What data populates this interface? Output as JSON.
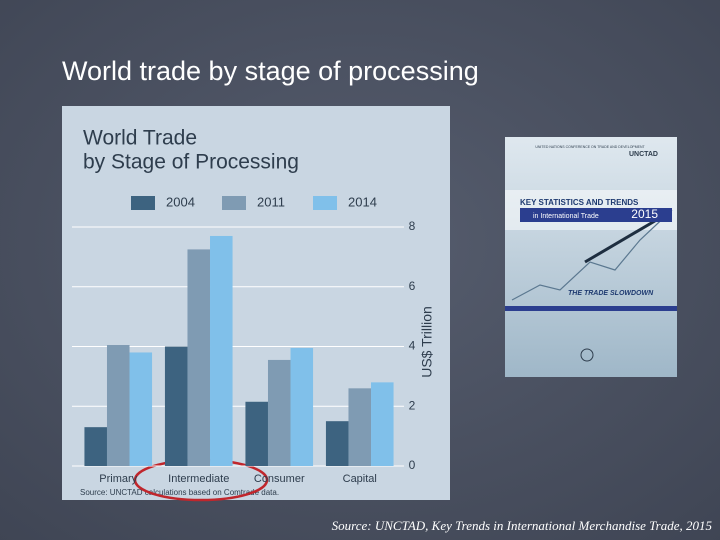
{
  "slide_title": "World trade by stage of processing",
  "footer": "Source: UNCTAD, Key Trends in International Merchandise Trade, 2015",
  "cover": {
    "org": "UNITED NATIONS CONFERENCE ON TRADE AND DEVELOPMENT",
    "brand": "UNCTAD",
    "heading": "KEY STATISTICS AND TRENDS",
    "subheading": "in International Trade",
    "year": "2015",
    "tagline": "THE TRADE SLOWDOWN"
  },
  "chart_data": {
    "type": "bar",
    "title": [
      "World Trade",
      "by Stage of Processing"
    ],
    "y_label": "US$ Trillion",
    "source": "Source: UNCTAD calculations based on Comtrade data.",
    "categories": [
      "Primary",
      "Intermediate",
      "Consumer",
      "Capital"
    ],
    "series": [
      {
        "name": "2004",
        "color": "#3d6380",
        "values": [
          1.3,
          4.0,
          2.15,
          1.5
        ]
      },
      {
        "name": "2011",
        "color": "#7f9bb3",
        "values": [
          4.05,
          7.25,
          3.55,
          2.6
        ]
      },
      {
        "name": "2014",
        "color": "#80c0ea",
        "values": [
          3.8,
          7.7,
          3.95,
          2.8
        ]
      }
    ],
    "ylim": [
      0,
      8
    ],
    "yticks": [
      0,
      2,
      4,
      6,
      8
    ],
    "grid": true,
    "legend": "top"
  }
}
